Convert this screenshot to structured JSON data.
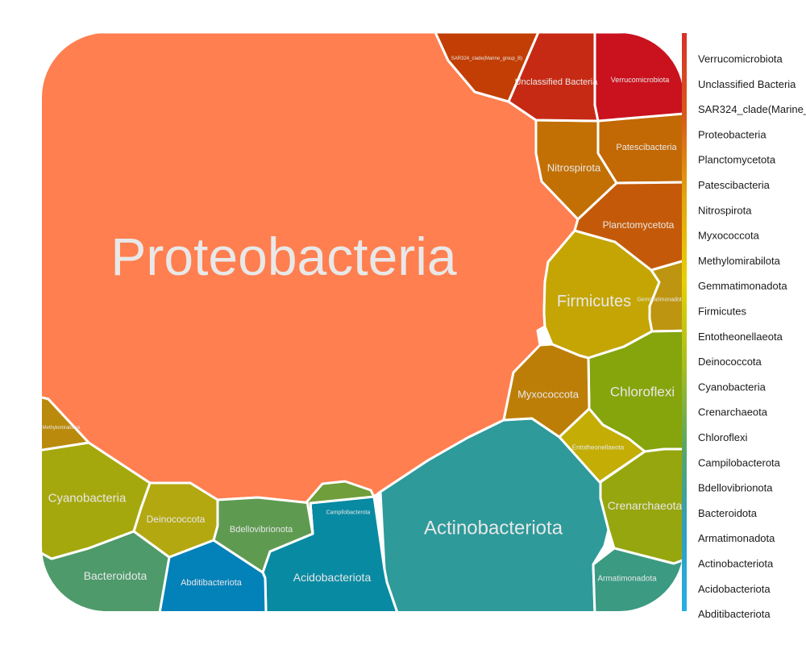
{
  "chart_data": {
    "type": "voronoi_treemap",
    "cells": [
      {
        "label": "Proteobacteria",
        "color": "#ff7f50"
      },
      {
        "label": "Actinobacteriota",
        "color": "#2e9a9a"
      },
      {
        "label": "Acidobacteriota",
        "color": "#088aa2"
      },
      {
        "label": "Abditibacteriota",
        "color": "#0381b9"
      },
      {
        "label": "Bdellovibrionota",
        "color": "#5f9a51"
      },
      {
        "label": "Campilobacterota",
        "color": "#709e3a"
      },
      {
        "label": "Bacteroidota",
        "color": "#4e9a6a"
      },
      {
        "label": "Deinococcota",
        "color": "#b3a810"
      },
      {
        "label": "Cyanobacteria",
        "color": "#a5a80c"
      },
      {
        "label": "Methylomirabilota",
        "color": "#ba8a0d"
      },
      {
        "label": "Firmicutes",
        "color": "#c4a503"
      },
      {
        "label": "Gemmatimonadota",
        "color": "#be9510"
      },
      {
        "label": "Chloroflexi",
        "color": "#86a40c"
      },
      {
        "label": "Myxococcota",
        "color": "#bd7e07"
      },
      {
        "label": "Entotheonellaeota",
        "color": "#c4ad04"
      },
      {
        "label": "Crenarchaeota",
        "color": "#96a60e"
      },
      {
        "label": "Armatimonadota",
        "color": "#3a9a82"
      },
      {
        "label": "Nitrospirota",
        "color": "#c27004"
      },
      {
        "label": "Patescibacteria",
        "color": "#c26804"
      },
      {
        "label": "Planctomycetota",
        "color": "#c45a09"
      },
      {
        "label": "SAR324_clade(Marine_group_B)",
        "color": "#c23e04"
      },
      {
        "label": "Unclassified Bacteria",
        "color": "#c72a14"
      },
      {
        "label": "Verrucomicrobiota",
        "color": "#c9121e"
      }
    ],
    "legend": {
      "position": "right",
      "entries": [
        "Verrucomicrobiota",
        "Unclassified Bacteria",
        "SAR324_clade(Marine_",
        "Proteobacteria",
        "Planctomycetota",
        "Patescibacteria",
        "Nitrospirota",
        "Myxococcota",
        "Methylomirabilota",
        "Gemmatimonadota",
        "Firmicutes",
        "Entotheonellaeota",
        "Deinococcota",
        "Cyanobacteria",
        "Crenarchaeota",
        "Chloroflexi",
        "Campilobacterota",
        "Bdellovibrionota",
        "Bacteroidota",
        "Armatimonadota",
        "Actinobacteriota",
        "Acidobacteriota",
        "Abditibacteriota"
      ],
      "gradient": [
        "#d7302b",
        "#d85a1a",
        "#e3a60c",
        "#e8d000",
        "#a8be1e",
        "#5aa660",
        "#2e9fc0",
        "#27aee4"
      ]
    }
  }
}
